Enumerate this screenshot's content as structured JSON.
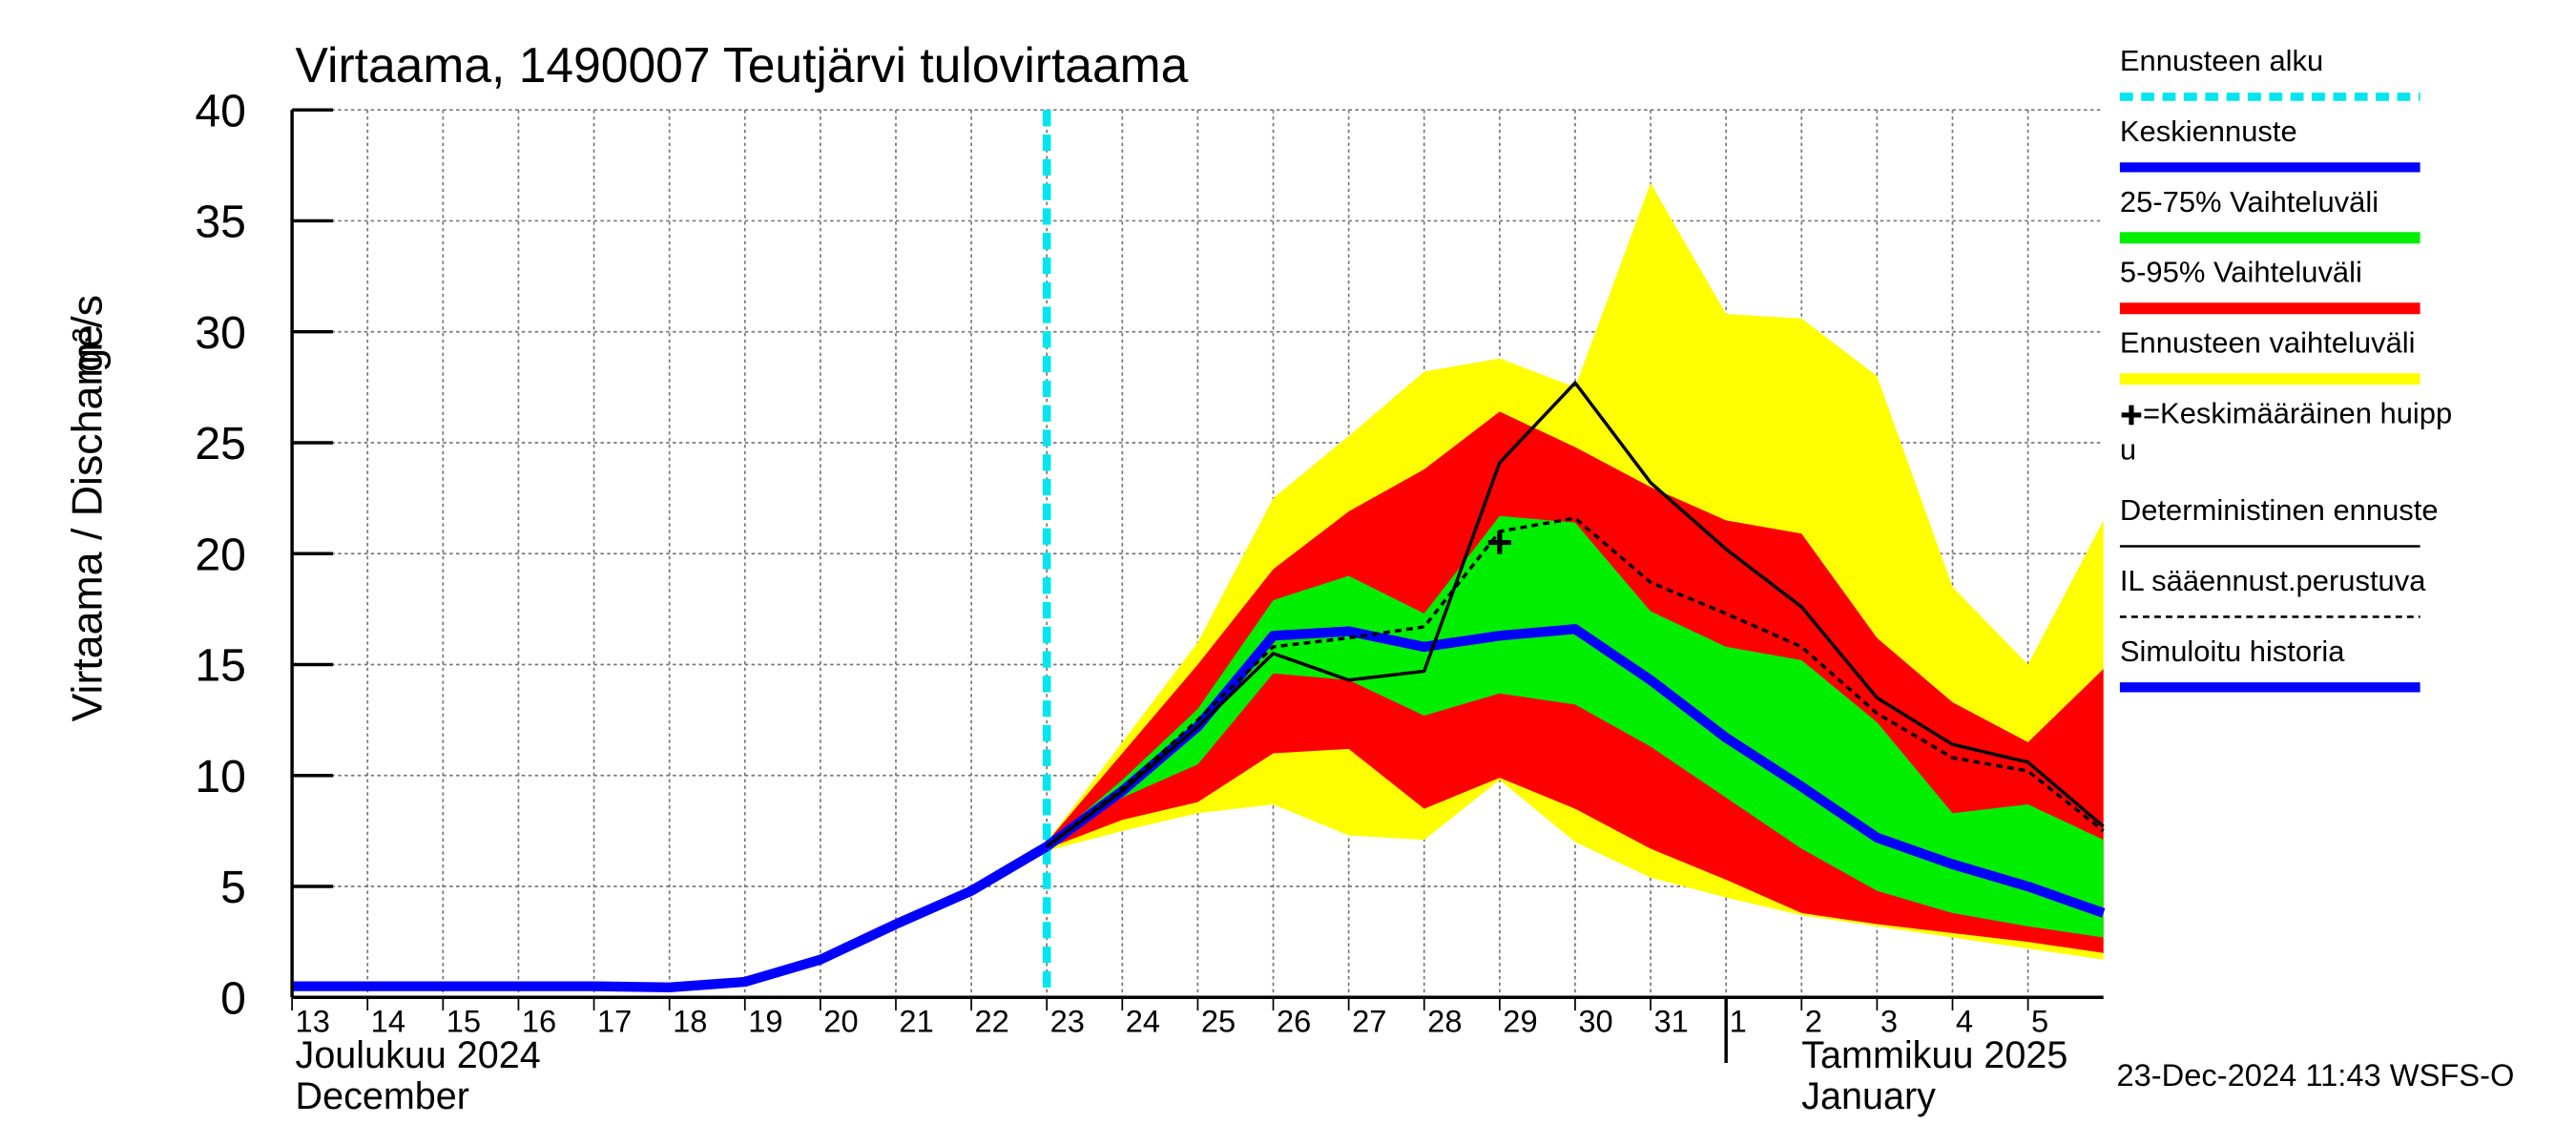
{
  "chart_data": {
    "type": "line",
    "title": "Virtaama, 1490007 Teutjärvi tulovirtaama",
    "ylabel": "Virtaama / Discharge",
    "yunit": "m³/s",
    "month_labels": [
      {
        "x": "2024-12-13",
        "lines": [
          "Joulukuu  2024",
          "December"
        ]
      },
      {
        "x": "2025-01-01",
        "lines": [
          "Tammikuu  2025",
          "January"
        ]
      }
    ],
    "timestamp": "23-Dec-2024 11:43 WSFS-O",
    "ylim": [
      0,
      40
    ],
    "yticks": [
      0,
      5,
      10,
      15,
      20,
      25,
      30,
      35,
      40
    ],
    "xlim": [
      "2024-12-13",
      "2025-01-06"
    ],
    "xticks": [
      {
        "value": "2024-12-13",
        "label": "13"
      },
      {
        "value": "2024-12-14",
        "label": "14"
      },
      {
        "value": "2024-12-15",
        "label": "15"
      },
      {
        "value": "2024-12-16",
        "label": "16"
      },
      {
        "value": "2024-12-17",
        "label": "17"
      },
      {
        "value": "2024-12-18",
        "label": "18"
      },
      {
        "value": "2024-12-19",
        "label": "19"
      },
      {
        "value": "2024-12-20",
        "label": "20"
      },
      {
        "value": "2024-12-21",
        "label": "21"
      },
      {
        "value": "2024-12-22",
        "label": "22"
      },
      {
        "value": "2024-12-23",
        "label": "23"
      },
      {
        "value": "2024-12-24",
        "label": "24"
      },
      {
        "value": "2024-12-25",
        "label": "25"
      },
      {
        "value": "2024-12-26",
        "label": "26"
      },
      {
        "value": "2024-12-27",
        "label": "27"
      },
      {
        "value": "2024-12-28",
        "label": "28"
      },
      {
        "value": "2024-12-29",
        "label": "29"
      },
      {
        "value": "2024-12-30",
        "label": "30"
      },
      {
        "value": "2024-12-31",
        "label": "31"
      },
      {
        "value": "2025-01-01",
        "label": "1"
      },
      {
        "value": "2025-01-02",
        "label": "2"
      },
      {
        "value": "2025-01-03",
        "label": "3"
      },
      {
        "value": "2025-01-04",
        "label": "4"
      },
      {
        "value": "2025-01-05",
        "label": "5"
      }
    ],
    "grid": true,
    "x": [
      "2024-12-13",
      "2024-12-14",
      "2024-12-15",
      "2024-12-16",
      "2024-12-17",
      "2024-12-18",
      "2024-12-19",
      "2024-12-20",
      "2024-12-21",
      "2024-12-22",
      "2024-12-23",
      "2024-12-24",
      "2024-12-25",
      "2024-12-26",
      "2024-12-27",
      "2024-12-28",
      "2024-12-29",
      "2024-12-30",
      "2024-12-31",
      "2025-01-01",
      "2025-01-02",
      "2025-01-03",
      "2025-01-04",
      "2025-01-05",
      "2025-01-06"
    ],
    "series": [
      {
        "name": "Ennusteen alku",
        "kind": "vline",
        "color": "#00e5ee",
        "x": "2024-12-23"
      },
      {
        "name": "Keskiennuste",
        "kind": "line",
        "color": "#0000ff",
        "width": 6,
        "values": [
          null,
          null,
          null,
          null,
          null,
          null,
          null,
          null,
          null,
          null,
          6.8,
          9.3,
          12.2,
          16.3,
          16.5,
          15.8,
          16.3,
          16.6,
          14.3,
          11.7,
          9.5,
          7.2,
          6.0,
          5.0,
          3.8
        ]
      },
      {
        "name": "25-75% Vaihteluväli",
        "kind": "band",
        "color": "#00ee00",
        "lower": [
          null,
          null,
          null,
          null,
          null,
          null,
          null,
          null,
          null,
          null,
          6.8,
          9.0,
          10.5,
          14.6,
          14.3,
          12.7,
          13.7,
          13.2,
          11.3,
          9.0,
          6.7,
          4.8,
          3.8,
          3.2,
          2.7
        ],
        "upper": [
          null,
          null,
          null,
          null,
          null,
          null,
          null,
          null,
          null,
          null,
          6.9,
          9.8,
          13.0,
          17.9,
          19.0,
          17.3,
          21.7,
          21.4,
          17.4,
          15.8,
          15.2,
          12.4,
          8.3,
          8.7,
          7.1
        ]
      },
      {
        "name": "5-95% Vaihteluväli",
        "kind": "band",
        "color": "#ff0000",
        "lower": [
          null,
          null,
          null,
          null,
          null,
          null,
          null,
          null,
          null,
          null,
          6.7,
          8.0,
          8.8,
          11.0,
          11.2,
          8.5,
          9.9,
          8.5,
          6.7,
          5.3,
          3.8,
          3.3,
          2.9,
          2.5,
          2.0
        ],
        "upper": [
          null,
          null,
          null,
          null,
          null,
          null,
          null,
          null,
          null,
          null,
          7.0,
          11.0,
          15.0,
          19.3,
          21.9,
          23.8,
          26.4,
          24.8,
          23.0,
          21.5,
          20.9,
          16.2,
          13.3,
          11.5,
          14.8
        ]
      },
      {
        "name": "Ennusteen vaihteluväli",
        "kind": "band",
        "color": "#ffff00",
        "lower": [
          null,
          null,
          null,
          null,
          null,
          null,
          null,
          null,
          null,
          null,
          6.6,
          7.5,
          8.3,
          8.7,
          7.3,
          7.1,
          9.8,
          7.0,
          5.4,
          4.5,
          3.7,
          3.2,
          2.7,
          2.2,
          1.7
        ],
        "upper": [
          null,
          null,
          null,
          null,
          null,
          null,
          null,
          null,
          null,
          null,
          7.0,
          11.5,
          16.0,
          22.5,
          25.3,
          28.2,
          28.8,
          27.5,
          36.7,
          30.8,
          30.6,
          28.0,
          18.5,
          15.0,
          21.5
        ]
      },
      {
        "name_lines": [
          "=Keskimääräinen huipp",
          "u"
        ],
        "kind": "marker",
        "color": "#000000",
        "x": "2024-12-29",
        "y": 20.5
      },
      {
        "name": "Deterministinen ennuste",
        "kind": "line",
        "color": "#000000",
        "width": 2,
        "values": [
          null,
          null,
          null,
          null,
          null,
          null,
          null,
          null,
          null,
          null,
          6.8,
          9.3,
          12.2,
          15.5,
          14.3,
          14.7,
          24.1,
          27.7,
          23.2,
          20.2,
          17.6,
          13.5,
          11.4,
          10.6,
          7.7
        ]
      },
      {
        "name": "IL sääennust.perustuva",
        "kind": "line",
        "color": "#000000",
        "width": 2,
        "dash": true,
        "values": [
          null,
          null,
          null,
          null,
          null,
          null,
          null,
          null,
          null,
          null,
          6.8,
          9.4,
          12.5,
          15.8,
          16.2,
          16.7,
          21.0,
          21.6,
          18.7,
          17.3,
          15.8,
          12.8,
          10.8,
          10.2,
          7.5
        ]
      },
      {
        "name": "Simuloitu historia",
        "kind": "line",
        "color": "#0000ff",
        "width": 6,
        "values": [
          0.5,
          0.5,
          0.5,
          0.5,
          0.5,
          0.45,
          0.7,
          1.7,
          3.3,
          4.8,
          6.8,
          null,
          null,
          null,
          null,
          null,
          null,
          null,
          null,
          null,
          null,
          null,
          null,
          null,
          null
        ]
      }
    ]
  }
}
